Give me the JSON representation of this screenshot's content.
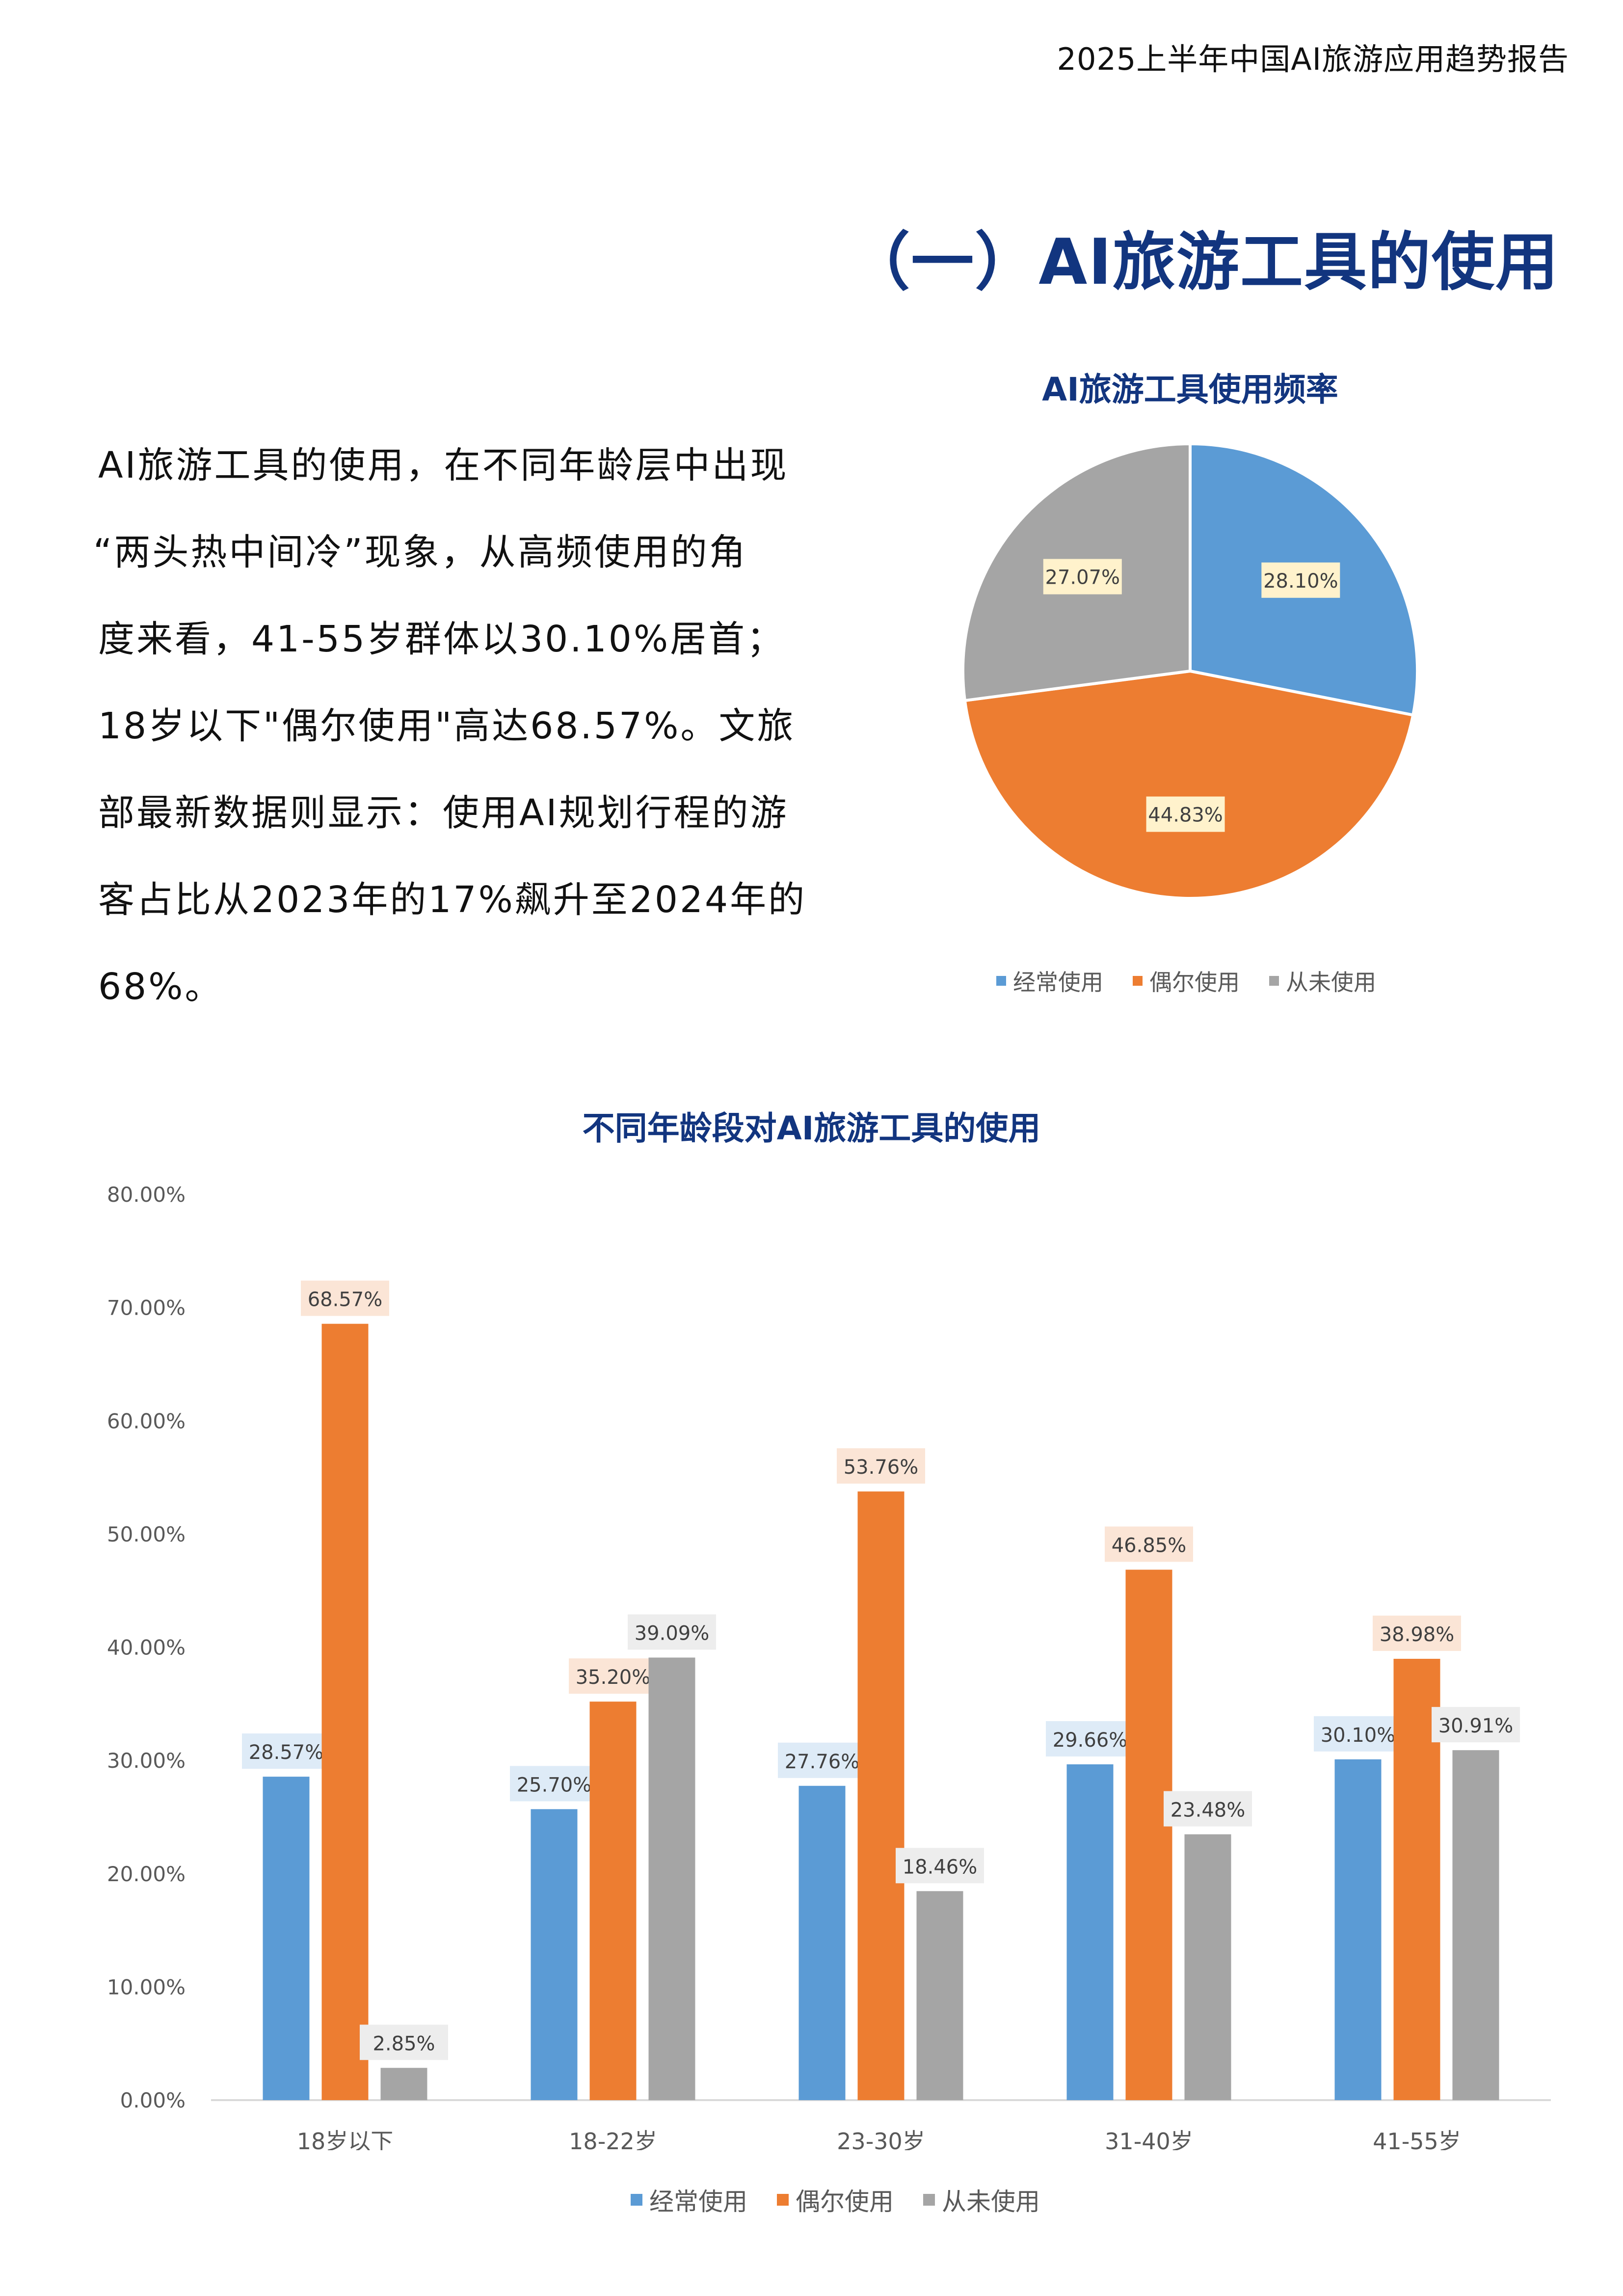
{
  "header": {
    "report_title": "2025上半年中国AI旅游应用趋势报告"
  },
  "section": {
    "title": "（一）AI旅游工具的使用"
  },
  "body": {
    "lines": [
      "AI旅游工具的使用，在不同年龄层中出现",
      "“两头热中间冷”现象，从高频使用的角",
      "度来看，41-55岁群体以30.10%居首；",
      "18岁以下\"偶尔使用\"高达68.57%。文旅",
      "部最新数据则显示：使用AI规划行程的游",
      "客占比从2023年的17%飙升至2024年的",
      "68%。"
    ]
  },
  "colors": {
    "title_blue": "#12357f",
    "series_blue": "#5b9bd5",
    "series_orange": "#ed7d31",
    "series_gray": "#a5a5a5",
    "label_bg_blue": "#deebf7",
    "label_bg_orange": "#fbe5d6",
    "label_bg_gray": "#ededed",
    "pie_label_bg": "#fff2cc"
  },
  "legend": {
    "items": [
      {
        "label": "经常使用",
        "color": "#5b9bd5"
      },
      {
        "label": "偶尔使用",
        "color": "#ed7d31"
      },
      {
        "label": "从未使用",
        "color": "#a5a5a5"
      }
    ]
  },
  "chart_data": [
    {
      "type": "pie",
      "title": "AI旅游工具使用频率",
      "categories": [
        "经常使用",
        "偶尔使用",
        "从未使用"
      ],
      "values": [
        28.1,
        44.83,
        27.07
      ],
      "labels": [
        "28.10%",
        "44.83%",
        "27.07%"
      ],
      "colors": [
        "#5b9bd5",
        "#ed7d31",
        "#a5a5a5"
      ],
      "legend_position": "bottom",
      "start_angle_deg": 0
    },
    {
      "type": "bar",
      "title": "不同年龄段对AI旅游工具的使用",
      "categories": [
        "18岁以下",
        "18-22岁",
        "23-30岁",
        "31-40岁",
        "41-55岁"
      ],
      "series": [
        {
          "name": "经常使用",
          "values": [
            28.57,
            25.7,
            27.76,
            29.66,
            30.1
          ],
          "labels": [
            "28.57%",
            "25.70%",
            "27.76%",
            "29.66%",
            "30.10%"
          ],
          "color": "#5b9bd5"
        },
        {
          "name": "偶尔使用",
          "values": [
            68.57,
            35.2,
            53.76,
            46.85,
            38.98
          ],
          "labels": [
            "68.57%",
            "35.20%",
            "53.76%",
            "46.85%",
            "38.98%"
          ],
          "color": "#ed7d31"
        },
        {
          "name": "从未使用",
          "values": [
            2.85,
            39.09,
            18.46,
            23.48,
            30.91
          ],
          "labels": [
            "2.85%",
            "39.09%",
            "18.46%",
            "23.48%",
            "30.91%"
          ],
          "color": "#a5a5a5"
        }
      ],
      "xlabel": "",
      "ylabel": "",
      "ylim": [
        0,
        80
      ],
      "yticks": [
        "0.00%",
        "10.00%",
        "20.00%",
        "30.00%",
        "40.00%",
        "50.00%",
        "60.00%",
        "70.00%",
        "80.00%"
      ],
      "grid": false,
      "legend_position": "bottom"
    }
  ]
}
